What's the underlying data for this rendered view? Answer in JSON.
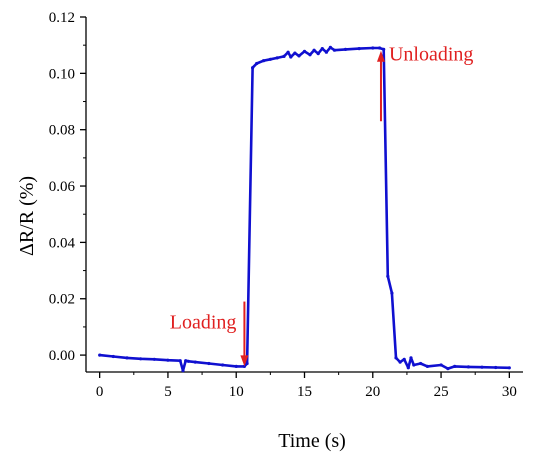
{
  "chart_data": {
    "type": "line",
    "title": "",
    "xlabel": "Time (s)",
    "ylabel": "ΔR/R (%)",
    "xlim": [
      -1,
      31
    ],
    "ylim": [
      -0.006,
      0.12
    ],
    "grid": false,
    "legend": "none",
    "colors": {
      "series": "#1010d0",
      "annotation": "#e02020",
      "axis": "#000000"
    },
    "x_ticks": [
      0,
      5,
      10,
      15,
      20,
      25,
      30
    ],
    "x_tick_labels": [
      "0",
      "5",
      "10",
      "15",
      "20",
      "25",
      "30"
    ],
    "y_ticks": [
      0.0,
      0.02,
      0.04,
      0.06,
      0.08,
      0.1,
      0.12
    ],
    "y_tick_labels": [
      "0.00",
      "0.02",
      "0.04",
      "0.06",
      "0.08",
      "0.10",
      "0.12"
    ],
    "series": [
      {
        "x": [
          0,
          1,
          2,
          3,
          4,
          5,
          5.9,
          6.1,
          6.3,
          6.5,
          7,
          8,
          9,
          10,
          10.6,
          10.8,
          11.2,
          11.5,
          12,
          12.5,
          13,
          13.5,
          13.8,
          14,
          14.3,
          14.6,
          15,
          15.4,
          15.7,
          16,
          16.3,
          16.6,
          16.9,
          17.2,
          18,
          19,
          20,
          20.5,
          20.8,
          21.1,
          21.4,
          21.7,
          22,
          22.3,
          22.6,
          22.8,
          23,
          23.5,
          24,
          25,
          25.5,
          26,
          27,
          28,
          29,
          30
        ],
        "y": [
          0.0,
          -0.0005,
          -0.001,
          -0.0013,
          -0.0015,
          -0.0018,
          -0.002,
          -0.0055,
          -0.002,
          -0.0022,
          -0.0025,
          -0.003,
          -0.0035,
          -0.004,
          -0.004,
          -0.003,
          0.102,
          0.1035,
          0.1045,
          0.105,
          0.1055,
          0.106,
          0.1075,
          0.1058,
          0.1072,
          0.1062,
          0.1078,
          0.1066,
          0.1082,
          0.107,
          0.1088,
          0.1075,
          0.1092,
          0.1082,
          0.1085,
          0.1088,
          0.109,
          0.109,
          0.1085,
          0.028,
          0.022,
          -0.001,
          -0.0025,
          -0.0015,
          -0.0045,
          -0.001,
          -0.0035,
          -0.003,
          -0.004,
          -0.0035,
          -0.0048,
          -0.004,
          -0.0042,
          -0.0043,
          -0.0044,
          -0.0045
        ]
      }
    ],
    "annotations": [
      {
        "label": "Loading",
        "arrow_from": [
          10.6,
          0.019
        ],
        "arrow_to": [
          10.6,
          -0.004
        ]
      },
      {
        "label": "Unloading",
        "arrow_from": [
          20.6,
          0.083
        ],
        "arrow_to": [
          20.6,
          0.108
        ]
      }
    ]
  }
}
